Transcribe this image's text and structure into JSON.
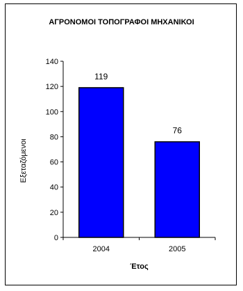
{
  "chart_data": {
    "type": "bar",
    "title": "ΑΓΡΟΝΟΜΟΙ ΤΟΠΟΓΡΑΦΟΙ ΜΗΧΑΝΙΚΟΙ",
    "xlabel": "Έτος",
    "ylabel": "Εξεταζόμενοι",
    "categories": [
      "2004",
      "2005"
    ],
    "values": [
      119,
      76
    ],
    "data_labels": [
      "119",
      "76"
    ],
    "ylim": [
      0,
      140
    ],
    "yticks": [
      "0",
      "20",
      "40",
      "60",
      "80",
      "100",
      "120",
      "140"
    ],
    "grid": false,
    "legend": "none",
    "bar_color": "#0000FF",
    "bar_edge_color": "#000000"
  }
}
